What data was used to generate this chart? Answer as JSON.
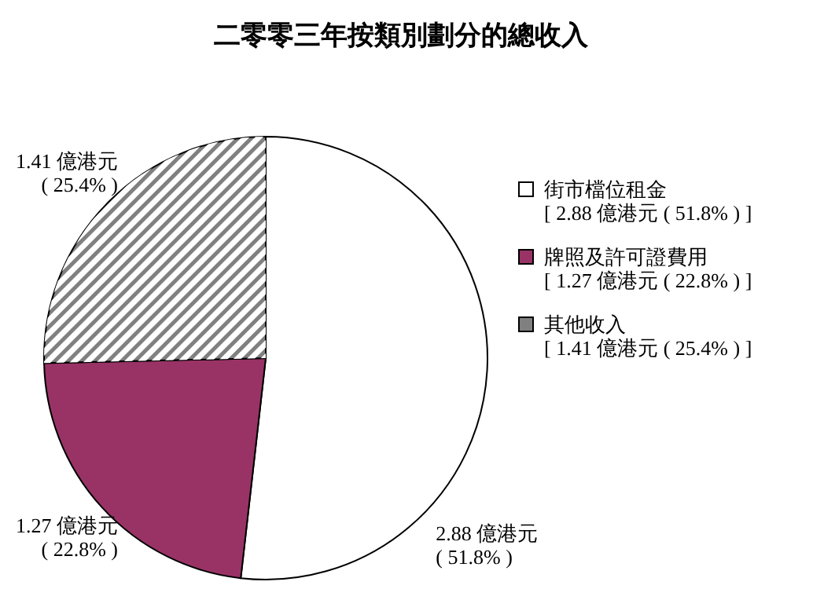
{
  "chart_data": {
    "type": "pie",
    "title": "二零零三年按類別劃分的總收入",
    "categories": [
      "街市檔位租金\n[ 2.88 億港元 ( 51.8% ) ]",
      "牌照及許可證費用\n[ 1.27 億港元 ( 22.8% ) ]",
      "其他收入\n[ 1.41 億港元 ( 25.4% ) ]"
    ],
    "values": [
      2.88,
      1.27,
      1.41
    ],
    "colors": [
      "#ffffff",
      "#993366",
      "#808080"
    ],
    "value_labels": [
      "2.88 億港元\n( 51.8% )",
      "1.27 億港元\n( 22.8% )",
      "1.41 億港元\n( 25.4% )"
    ],
    "legend": "right"
  }
}
